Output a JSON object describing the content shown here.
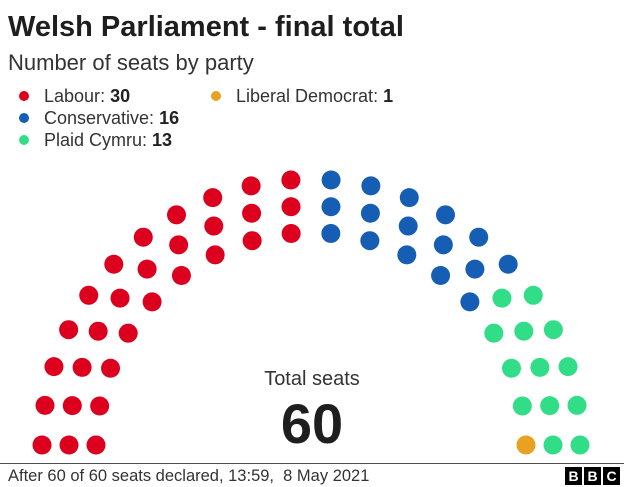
{
  "chart_data": {
    "type": "pie",
    "title": "Welsh Parliament - final total",
    "subtitle": "Number of seats by party",
    "categories": [
      "Labour",
      "Conservative",
      "Plaid Cymru",
      "Liberal Democrat"
    ],
    "values": [
      30,
      16,
      13,
      1
    ],
    "colors": [
      "#DC001E",
      "#165EB4",
      "#32DD88",
      "#E9A122"
    ],
    "total_label": "Total seats",
    "total": 60,
    "legend_position": "top-left"
  },
  "legend": {
    "separator": ": "
  },
  "footer": {
    "note": "After 60 of 60 seats declared, 13:59,  8 May 2021",
    "logo_letters": [
      "B",
      "B",
      "C"
    ]
  }
}
